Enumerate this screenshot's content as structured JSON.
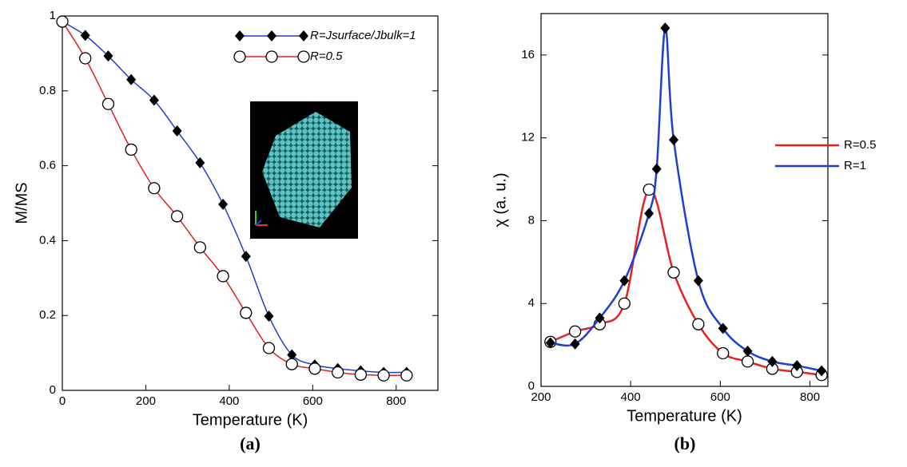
{
  "chart_data": [
    {
      "type": "line",
      "caption": "(a)",
      "x_label": "Temperature (K)",
      "y_label": "M/MS",
      "xlim": [
        0,
        900
      ],
      "xticks": [
        0,
        200,
        400,
        600,
        800
      ],
      "ylim": [
        0,
        1
      ],
      "yticks": [
        0,
        0.2,
        0.4,
        0.6,
        0.8,
        1
      ],
      "legend": "top-right",
      "legend_markers": true,
      "series": [
        {
          "name": "R=Jsurface/Jbulk=1",
          "color": "#1f3fd0",
          "marker": "diamond",
          "x": [
            0,
            55,
            110,
            165,
            220,
            275,
            330,
            385,
            440,
            495,
            550,
            605,
            660,
            715,
            770,
            825
          ],
          "values": [
            0.985,
            0.948,
            0.893,
            0.83,
            0.775,
            0.693,
            0.608,
            0.497,
            0.358,
            0.198,
            0.095,
            0.068,
            0.058,
            0.052,
            0.048,
            0.048
          ]
        },
        {
          "name": "R=0.5",
          "color": "#e02020",
          "marker": "circle",
          "x": [
            0,
            55,
            110,
            165,
            220,
            275,
            330,
            385,
            440,
            495,
            550,
            605,
            660,
            715,
            770,
            825
          ],
          "values": [
            0.985,
            0.887,
            0.765,
            0.643,
            0.54,
            0.465,
            0.382,
            0.305,
            0.207,
            0.113,
            0.07,
            0.058,
            0.048,
            0.042,
            0.04,
            0.04
          ]
        }
      ]
    },
    {
      "type": "line",
      "caption": "(b)",
      "x_label": "Temperature (K)",
      "y_label": "χ (a. u.)",
      "xlim": [
        200,
        840
      ],
      "xticks": [
        200,
        400,
        600,
        800
      ],
      "ylim": [
        0,
        18
      ],
      "yticks": [
        0,
        4,
        8,
        12,
        16
      ],
      "legend": "right",
      "legend_markers": false,
      "series": [
        {
          "name": "R=0.5",
          "color": "#e82020",
          "marker": "circle",
          "x": [
            221,
            276,
            331,
            386,
            441,
            496,
            551,
            606,
            661,
            716,
            771,
            826
          ],
          "values": [
            2.15,
            2.65,
            3.0,
            4.0,
            9.5,
            5.5,
            3.0,
            1.6,
            1.2,
            0.85,
            0.7,
            0.55
          ]
        },
        {
          "name": "R=1",
          "color": "#1f3fd0",
          "marker": "diamond",
          "x": [
            221,
            276,
            331,
            386,
            441,
            458,
            477,
            496,
            551,
            606,
            661,
            716,
            771,
            826
          ],
          "values": [
            2.1,
            2.05,
            3.3,
            5.1,
            8.35,
            10.5,
            17.3,
            11.9,
            5.1,
            2.8,
            1.7,
            1.2,
            1.0,
            0.75
          ]
        }
      ]
    }
  ]
}
